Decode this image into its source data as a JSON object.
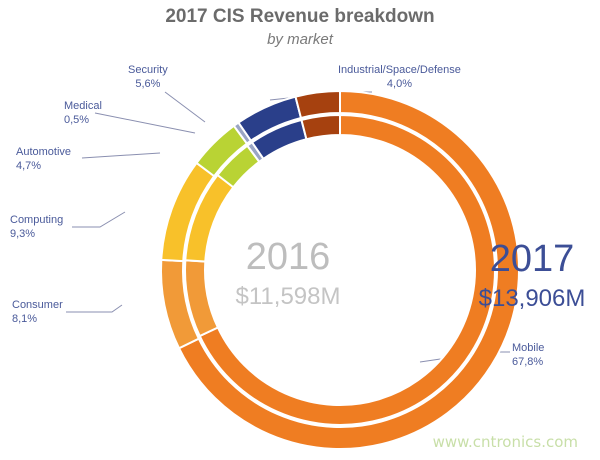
{
  "chart_data": {
    "type": "pie",
    "title": "2017 CIS Revenue breakdown",
    "subtitle": "by market",
    "inner_ring": {
      "year": "2016",
      "total": "$11,598M"
    },
    "outer_ring": {
      "year": "2017",
      "total": "$13,906M"
    },
    "categories": [
      "Mobile",
      "Consumer",
      "Computing",
      "Automotive",
      "Medical",
      "Security",
      "Industrial/Space/Defense"
    ],
    "values": [
      67.8,
      8.1,
      9.3,
      4.7,
      0.5,
      5.6,
      4.0
    ],
    "value_labels": [
      "67,8%",
      "8,1%",
      "9,3%",
      "4,7%",
      "0,5%",
      "5,6%",
      "4,0%"
    ],
    "inner_values": [
      68.0,
      8.0,
      9.5,
      4.3,
      0.6,
      5.6,
      4.0
    ],
    "colors": [
      "#ef7d22",
      "#f19a38",
      "#f8c12a",
      "#b9d334",
      "#9aa5c4",
      "#2a3f8a",
      "#a6410f"
    ]
  },
  "watermark": "www.cntronics.com"
}
